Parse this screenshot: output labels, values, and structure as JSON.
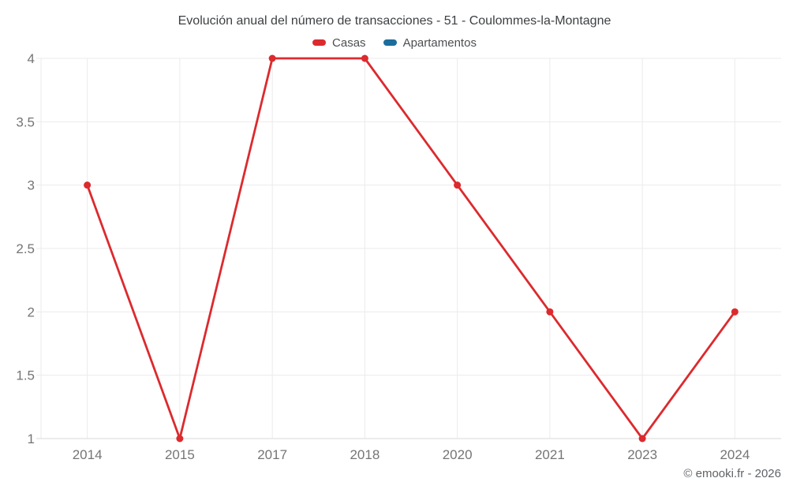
{
  "chart_data": {
    "type": "line",
    "title": "Evolución anual del número de transacciones - 51 - Coulommes-la-Montagne",
    "categories": [
      "2014",
      "2015",
      "2017",
      "2018",
      "2020",
      "2021",
      "2023",
      "2024"
    ],
    "series": [
      {
        "name": "Casas",
        "color": "#dc2a2e",
        "values": [
          3,
          1,
          4,
          4,
          3,
          2,
          1,
          2
        ]
      },
      {
        "name": "Apartamentos",
        "color": "#1b6d9c",
        "values": []
      }
    ],
    "ylim": [
      1,
      4
    ],
    "ytick_step": 0.5,
    "ytick_labels": [
      "1",
      "1.5",
      "2",
      "2.5",
      "3",
      "3.5",
      "4"
    ],
    "grid": true,
    "legend_position": "top",
    "xlabel": "",
    "ylabel": ""
  },
  "footer": {
    "copyright": "© emooki.fr - 2026"
  },
  "colors": {
    "grid": "#ebebeb",
    "axis": "#d9d9d9",
    "tick_label": "#757575",
    "title": "#3d4043",
    "background": "#ffffff"
  }
}
